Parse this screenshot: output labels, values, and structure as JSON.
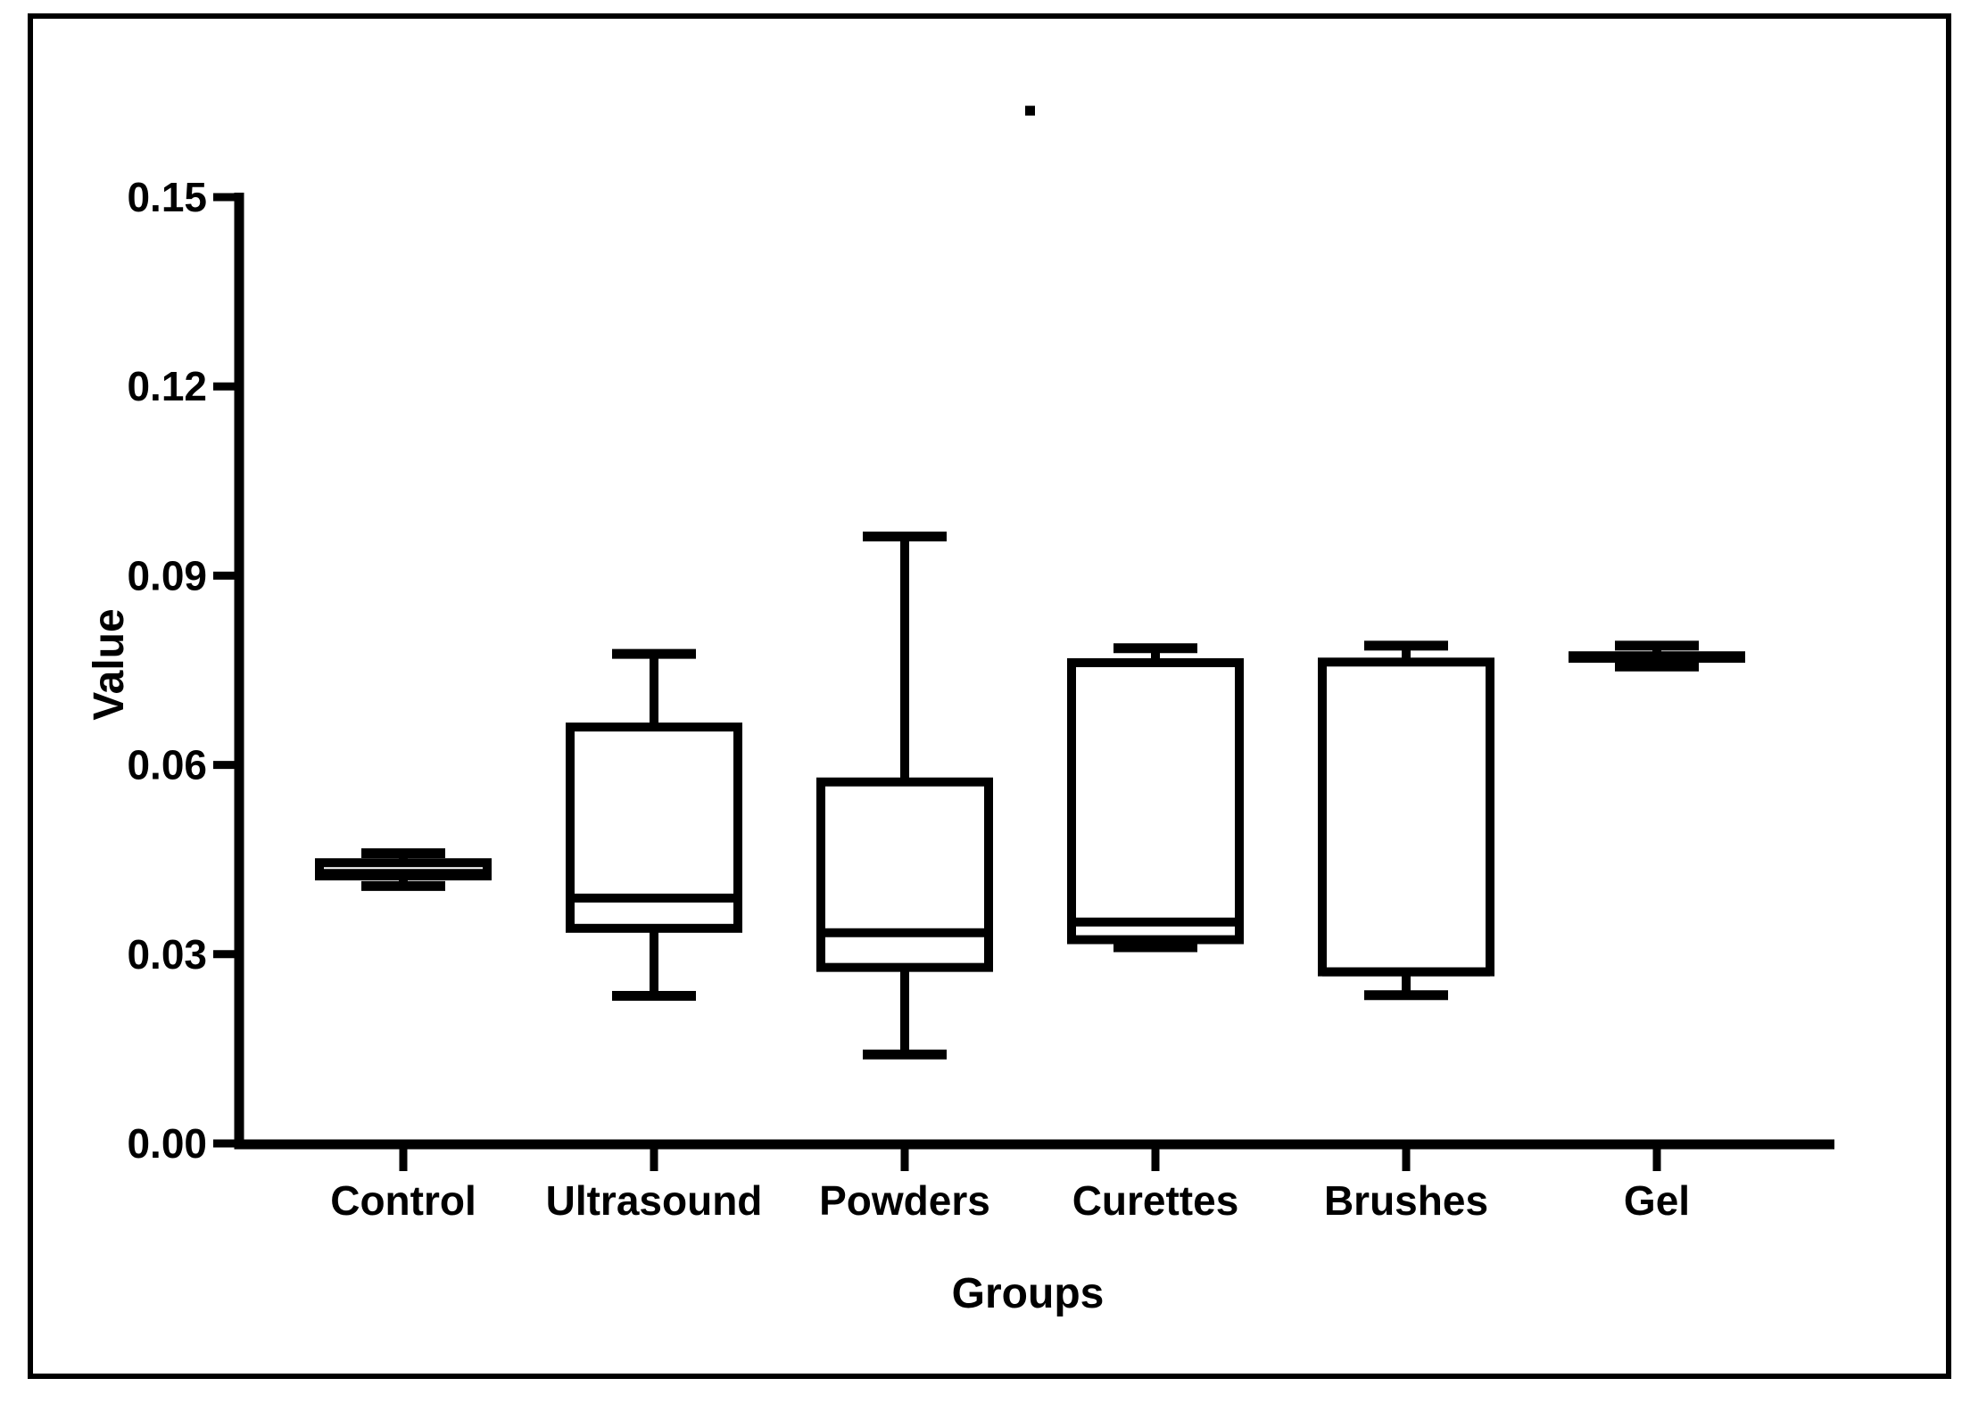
{
  "figure": {
    "background_color": "#ffffff",
    "ink_color": "#000000",
    "border_color": "#000000"
  },
  "chart_data": {
    "type": "boxplot",
    "title": "",
    "xlabel": "Groups",
    "ylabel": "Value",
    "categories": [
      "Control",
      "Ultrasound",
      "Powders",
      "Curettes",
      "Brushes",
      "Gel"
    ],
    "groups": [
      {
        "label": "Control",
        "min": 0.0408,
        "q1": 0.0424,
        "median": 0.0428,
        "q3": 0.0445,
        "max": 0.046
      },
      {
        "label": "Ultrasound",
        "min": 0.0234,
        "q1": 0.0341,
        "median": 0.0389,
        "q3": 0.066,
        "max": 0.0776
      },
      {
        "label": "Powders",
        "min": 0.0141,
        "q1": 0.0279,
        "median": 0.0334,
        "q3": 0.0573,
        "max": 0.0962
      },
      {
        "label": "Curettes",
        "min": 0.0311,
        "q1": 0.0323,
        "median": 0.0351,
        "q3": 0.0762,
        "max": 0.0785
      },
      {
        "label": "Brushes",
        "min": 0.0235,
        "q1": 0.0272,
        "median": 0.0272,
        "q3": 0.0763,
        "max": 0.0789
      },
      {
        "label": "Gel",
        "min": 0.0756,
        "q1": 0.0769,
        "median": 0.0771,
        "q3": 0.0773,
        "max": 0.0789
      }
    ],
    "y_ticks": [
      "0.00",
      "0.03",
      "0.06",
      "0.09",
      "0.12",
      "0.15"
    ],
    "y_tick_values": [
      0.0,
      0.03,
      0.06,
      0.09,
      0.12,
      0.15
    ],
    "ylim": [
      0,
      0.15
    ],
    "grid": false,
    "legend": false,
    "stray_point": {
      "value": 0.1637,
      "between_categories": [
        "Powders",
        "Curettes"
      ]
    }
  }
}
